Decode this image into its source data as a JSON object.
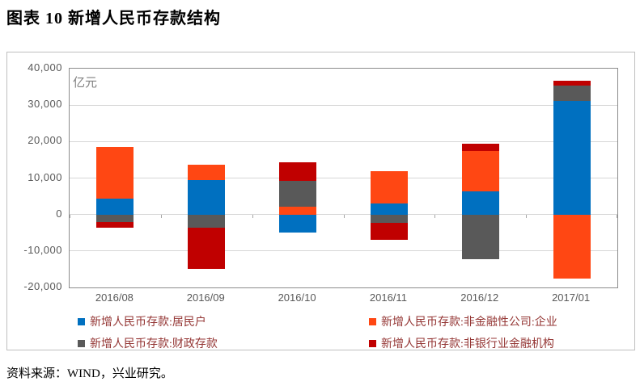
{
  "title": "图表 10  新增人民币存款结构",
  "source": "资料来源：WIND，兴业研究。",
  "chart_data": {
    "type": "bar",
    "stacked": true,
    "title": "新增人民币存款结构",
    "unit_label": "亿元",
    "xlabel": "",
    "ylabel": "亿元",
    "categories": [
      "2016/08",
      "2016/09",
      "2016/10",
      "2016/11",
      "2016/12",
      "2017/01"
    ],
    "series": [
      {
        "name": "新增人民币存款:居民户",
        "color": "#0070C0",
        "values": [
          4300,
          9500,
          -4900,
          3100,
          6300,
          31100
        ]
      },
      {
        "name": "新增人民币存款:非金融性公司:企业",
        "color": "#FF4713",
        "values": [
          14200,
          4200,
          2100,
          8800,
          11100,
          -17500
        ]
      },
      {
        "name": "新增人民币存款:财政存款",
        "color": "#595959",
        "values": [
          -2100,
          -3600,
          7200,
          -2300,
          -12200,
          4200
        ]
      },
      {
        "name": "新增人民币存款:非银行业金融机构",
        "color": "#C00000",
        "values": [
          -1500,
          -11300,
          5000,
          -4600,
          1900,
          1300
        ]
      }
    ],
    "ylim": [
      -20000,
      40000
    ],
    "ytick_step": 10000,
    "grid": true,
    "legend_position": "bottom"
  },
  "colors": {
    "household_blue": "#0070C0",
    "enterprise_orange": "#FF4713",
    "fiscal_gray": "#595959",
    "nonbank_red": "#C00000",
    "axis_text": "#595959",
    "legend_text": "#943634",
    "gridline": "#D6D6D6"
  }
}
